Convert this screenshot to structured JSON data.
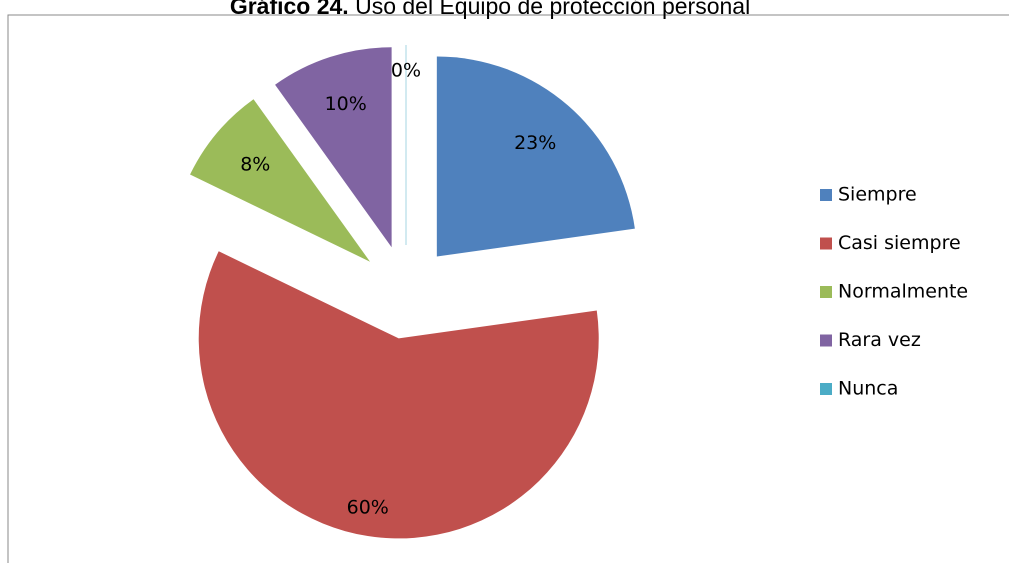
{
  "chart_data": {
    "type": "pie",
    "title_prefix": "Gráfico 24.",
    "title": "Uso del Equipo de protección personal",
    "categories": [
      "Siempre",
      "Casi siempre",
      "Normalmente",
      "Rara vez",
      "Nunca"
    ],
    "values": [
      23,
      60,
      8,
      10,
      0
    ],
    "value_labels": [
      "23%",
      "60%",
      "8%",
      "10%",
      "0%"
    ],
    "colors": [
      "#4f81bd",
      "#c0504d",
      "#9bbb59",
      "#8064a2",
      "#4bacc6"
    ],
    "legend": "right"
  }
}
